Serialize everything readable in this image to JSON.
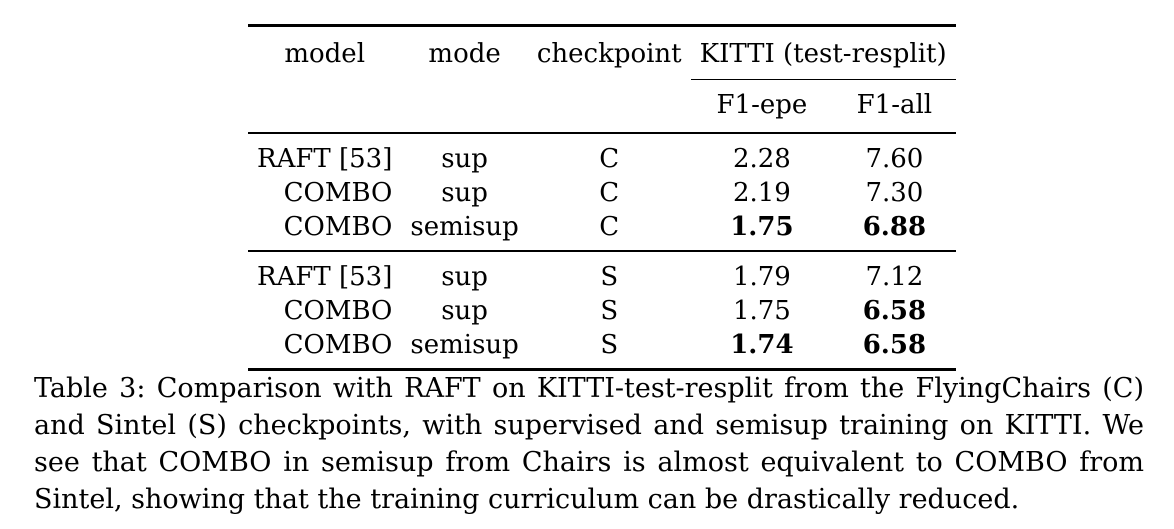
{
  "table": {
    "headers": {
      "model": "model",
      "mode": "mode",
      "checkpoint": "checkpoint",
      "group": "KITTI (test-resplit)",
      "f1_epe": "F1-epe",
      "f1_all": "F1-all"
    },
    "groups": [
      {
        "rows": [
          {
            "model": "RAFT [53]",
            "mode": "sup",
            "checkpoint": "C",
            "f1_epe": "2.28",
            "f1_all": "7.60"
          },
          {
            "model": "COMBO",
            "mode": "sup",
            "checkpoint": "C",
            "f1_epe": "2.19",
            "f1_all": "7.30"
          },
          {
            "model": "COMBO",
            "mode": "semisup",
            "checkpoint": "C",
            "f1_epe": "1.75",
            "f1_all": "6.88"
          }
        ]
      },
      {
        "rows": [
          {
            "model": "RAFT [53]",
            "mode": "sup",
            "checkpoint": "S",
            "f1_epe": "1.79",
            "f1_all": "7.12"
          },
          {
            "model": "COMBO",
            "mode": "sup",
            "checkpoint": "S",
            "f1_epe": "1.75",
            "f1_all": "6.58"
          },
          {
            "model": "COMBO",
            "mode": "semisup",
            "checkpoint": "S",
            "f1_epe": "1.74",
            "f1_all": "6.58"
          }
        ]
      }
    ]
  },
  "caption": "Table 3: Comparison with RAFT on KITTI-test-resplit from the FlyingChairs (C) and Sintel (S) checkpoints, with supervised and semisup training on KITTI. We see that COMBO in semisup from Chairs is almost equivalent to COMBO from Sintel, showing that the training curriculum can be drastically reduced."
}
